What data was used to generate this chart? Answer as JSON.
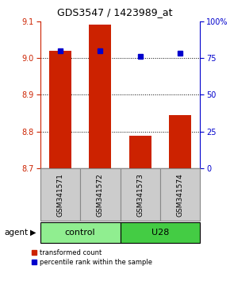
{
  "title": "GDS3547 / 1423989_at",
  "samples": [
    "GSM341571",
    "GSM341572",
    "GSM341573",
    "GSM341574"
  ],
  "red_values": [
    9.02,
    9.09,
    8.79,
    8.845
  ],
  "blue_values": [
    80,
    80,
    76,
    78
  ],
  "ylim_left": [
    8.7,
    9.1
  ],
  "ylim_right": [
    0,
    100
  ],
  "yticks_left": [
    8.7,
    8.8,
    8.9,
    9.0,
    9.1
  ],
  "yticks_right": [
    0,
    25,
    50,
    75,
    100
  ],
  "ytick_labels_right": [
    "0",
    "25",
    "50",
    "75",
    "100%"
  ],
  "groups": [
    {
      "label": "control",
      "indices": [
        0,
        1
      ],
      "color": "#90EE90"
    },
    {
      "label": "U28",
      "indices": [
        2,
        3
      ],
      "color": "#44CC44"
    }
  ],
  "bar_color": "#CC2200",
  "dot_color": "#0000CC",
  "bar_width": 0.55,
  "baseline": 8.7,
  "left_tick_color": "#CC2200",
  "right_tick_color": "#0000CC",
  "background_label": "#CCCCCC",
  "legend_red_label": "transformed count",
  "legend_blue_label": "percentile rank within the sample",
  "agent_label": "agent"
}
